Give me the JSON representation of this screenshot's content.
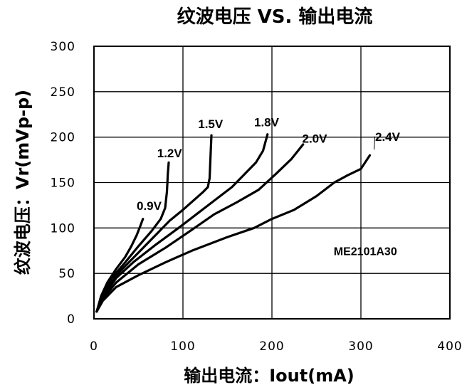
{
  "chart_data": {
    "type": "line",
    "title": "纹波电压 VS. 输出电流",
    "xlabel": "输出电流：Iout(mA)",
    "ylabel": "纹波电压：Vr(mVp-p)",
    "xlim": [
      0,
      400
    ],
    "ylim": [
      0,
      300
    ],
    "xticks": [
      0,
      100,
      200,
      300,
      400
    ],
    "yticks": [
      0,
      50,
      100,
      150,
      200,
      250,
      300
    ],
    "x_tick_labels": [
      "0",
      "100",
      "200",
      "300",
      "400"
    ],
    "y_tick_labels": [
      "0",
      "50",
      "100",
      "150",
      "200",
      "250",
      "300"
    ],
    "grid": true,
    "annotation": "ME2101A30",
    "series": [
      {
        "name": "0.9V",
        "label_at": [
          62,
          120
        ],
        "x": [
          3,
          8,
          15,
          25,
          35,
          42,
          48,
          52,
          55
        ],
        "y": [
          8,
          25,
          40,
          55,
          68,
          80,
          92,
          102,
          110
        ]
      },
      {
        "name": "1.2V",
        "label_at": [
          85,
          178
        ],
        "x": [
          3,
          10,
          20,
          35,
          50,
          65,
          75,
          80,
          82,
          83,
          84
        ],
        "y": [
          8,
          28,
          45,
          62,
          80,
          97,
          110,
          122,
          140,
          160,
          172
        ]
      },
      {
        "name": "1.5V",
        "label_at": [
          131,
          210
        ],
        "x": [
          3,
          10,
          25,
          45,
          65,
          85,
          100,
          115,
          123,
          128,
          130,
          131,
          132
        ],
        "y": [
          8,
          25,
          48,
          68,
          88,
          108,
          120,
          133,
          140,
          145,
          155,
          180,
          202
        ]
      },
      {
        "name": "1.8V",
        "label_at": [
          194,
          212
        ],
        "x": [
          3,
          10,
          25,
          45,
          70,
          95,
          115,
          135,
          155,
          170,
          182,
          190,
          195
        ],
        "y": [
          8,
          24,
          45,
          63,
          82,
          100,
          115,
          130,
          145,
          160,
          172,
          185,
          203
        ]
      },
      {
        "name": "2.0V",
        "label_at": [
          248,
          194
        ],
        "x": [
          3,
          10,
          25,
          50,
          80,
          110,
          135,
          160,
          185,
          205,
          222,
          235
        ],
        "y": [
          8,
          22,
          40,
          60,
          78,
          98,
          115,
          128,
          142,
          160,
          176,
          192
        ]
      },
      {
        "name": "2.4V",
        "label_at": [
          330,
          196
        ],
        "x": [
          3,
          10,
          25,
          50,
          80,
          110,
          150,
          180,
          200,
          225,
          250,
          270,
          285,
          300,
          310
        ],
        "y": [
          8,
          20,
          35,
          48,
          62,
          75,
          90,
          100,
          110,
          120,
          135,
          150,
          158,
          165,
          180
        ]
      }
    ]
  }
}
